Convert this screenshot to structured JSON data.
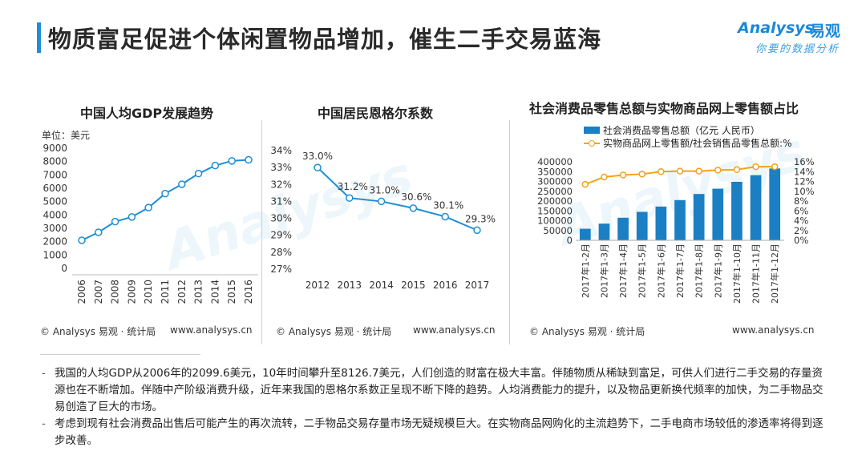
{
  "page": {
    "title": "物质富足促进个体闲置物品增加，催生二手交易蓝海",
    "brand": {
      "name": "Analysys",
      "name_cn": "易观",
      "tagline": "你要的数据分析"
    }
  },
  "charts": {
    "gdp": {
      "title": "中国人均GDP发展趋势",
      "unit": "单位：美元",
      "source": "© Analysys 易观 · 统计局",
      "site": "www.analysys.cn"
    },
    "engel": {
      "title": "中国居民恩格尔系数",
      "source": "© Analysys 易观 · 统计局",
      "site": "www.analysys.cn"
    },
    "retail": {
      "title": "社会消费品零售总额与实物商品网上零售额占比",
      "legend_bar": "社会消费品零售总额（亿元 人民币）",
      "legend_line": "实物商品网上零售额/社会销售品零售总额:%",
      "source": "© Analysys 易观 · 统计局",
      "site": "www.analysys.cn"
    }
  },
  "chart_data": [
    {
      "type": "line",
      "title": "中国人均GDP发展趋势",
      "ylabel": "单位：美元",
      "x": [
        "2006",
        "2007",
        "2008",
        "2009",
        "2010",
        "2011",
        "2012",
        "2013",
        "2014",
        "2015",
        "2016"
      ],
      "values": [
        2099.6,
        2700,
        3500,
        3850,
        4550,
        5600,
        6300,
        7100,
        7700,
        8050,
        8126.7
      ],
      "ylim": [
        0,
        9000
      ],
      "yticks": [
        "0",
        "1000",
        "2000",
        "3000",
        "4000",
        "5000",
        "6000",
        "7000",
        "8000",
        "9000"
      ],
      "colors": {
        "line": "#1b8fd6"
      }
    },
    {
      "type": "line",
      "title": "中国居民恩格尔系数",
      "x": [
        "2012",
        "2013",
        "2014",
        "2015",
        "2016",
        "2017"
      ],
      "values": [
        33.0,
        31.2,
        31.0,
        30.6,
        30.1,
        29.3
      ],
      "data_labels": [
        "33.0%",
        "31.2%",
        "31.0%",
        "30.6%",
        "30.1%",
        "29.3%"
      ],
      "ylim": [
        27,
        34
      ],
      "yticks": [
        "27%",
        "28%",
        "29%",
        "30%",
        "31%",
        "32%",
        "33%",
        "34%"
      ],
      "colors": {
        "line": "#1b8fd6"
      }
    },
    {
      "type": "bar",
      "title": "社会消费品零售总额与实物商品网上零售额占比",
      "categories": [
        "2017年1-2月",
        "2017年1-3月",
        "2017年1-4月",
        "2017年1-5月",
        "2017年1-6月",
        "2017年1-7月",
        "2017年1-8月",
        "2017年1-9月",
        "2017年1-10月",
        "2017年1-11月",
        "2017年1-12月"
      ],
      "series": [
        {
          "name": "社会消费品零售总额（亿元 人民币）",
          "type": "bar",
          "axis": "left",
          "values": [
            59000,
            85000,
            115000,
            145000,
            172000,
            205000,
            236000,
            263000,
            298000,
            332000,
            366000
          ]
        },
        {
          "name": "实物商品网上零售额/社会销售品零售总额:%",
          "type": "line",
          "axis": "right",
          "values": [
            11.4,
            12.9,
            13.3,
            13.5,
            14.0,
            14.1,
            14.1,
            14.3,
            14.4,
            15.0,
            15.0
          ]
        }
      ],
      "ylim_left": [
        0,
        400000
      ],
      "yticks_left": [
        "0",
        "50000",
        "100000",
        "150000",
        "200000",
        "250000",
        "300000",
        "350000",
        "400000"
      ],
      "ylim_right": [
        0,
        16
      ],
      "yticks_right": [
        "0%",
        "2%",
        "4%",
        "6%",
        "8%",
        "10%",
        "12%",
        "14%",
        "16%"
      ],
      "colors": {
        "bar": "#1b7fc4",
        "line": "#f2a31b"
      }
    }
  ],
  "notes": [
    "我国的人均GDP从2006年的2099.6美元，10年时间攀升至8126.7美元，人们创造的财富在极大丰富。伴随物质从稀缺到富足，可供人们进行二手交易的存量资源也在不断增加。伴随中产阶级消费升级，近年来我国的恩格尔系数正呈现不断下降的趋势。人均消费能力的提升，以及物品更新换代频率的加快，为二手物品交易创造了巨大的市场。",
    "考虑到现有社会消费品出售后可能产生的再次流转，二手物品交易存量市场无疑规模巨大。在实物商品网购化的主流趋势下，二手电商市场较低的渗透率将得到逐步改善。"
  ]
}
